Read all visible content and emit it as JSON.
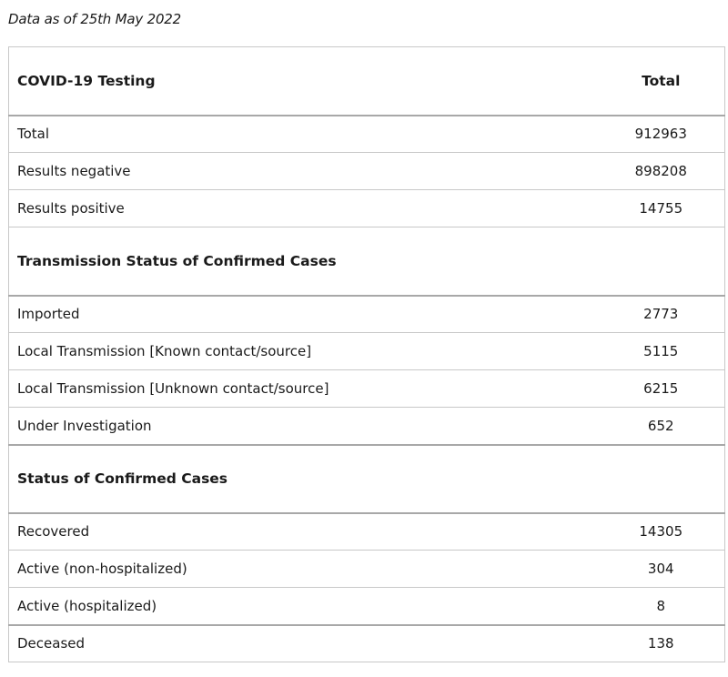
{
  "as_of": "Data as of 25th May 2022",
  "testing": {
    "heading": "COVID-19 Testing",
    "total_col": "Total",
    "rows": [
      {
        "label": "Total",
        "value": "912963"
      },
      {
        "label": "Results negative",
        "value": "898208"
      },
      {
        "label": "Results positive",
        "value": "14755"
      }
    ]
  },
  "transmission": {
    "heading": "Transmission Status of Confirmed Cases",
    "rows": [
      {
        "label": "Imported",
        "value": "2773"
      },
      {
        "label": "Local Transmission [Known contact/source]",
        "value": "5115"
      },
      {
        "label": "Local Transmission [Unknown contact/source]",
        "value": "6215"
      },
      {
        "label": "Under Investigation",
        "value": "652"
      }
    ]
  },
  "status": {
    "heading": "Status of Confirmed Cases",
    "rows": [
      {
        "label": "Recovered",
        "value": "14305"
      },
      {
        "label": "Active (non-hospitalized)",
        "value": "304"
      },
      {
        "label": "Active (hospitalized)",
        "value": "8"
      },
      {
        "label": "Deceased",
        "value": "138"
      }
    ]
  }
}
